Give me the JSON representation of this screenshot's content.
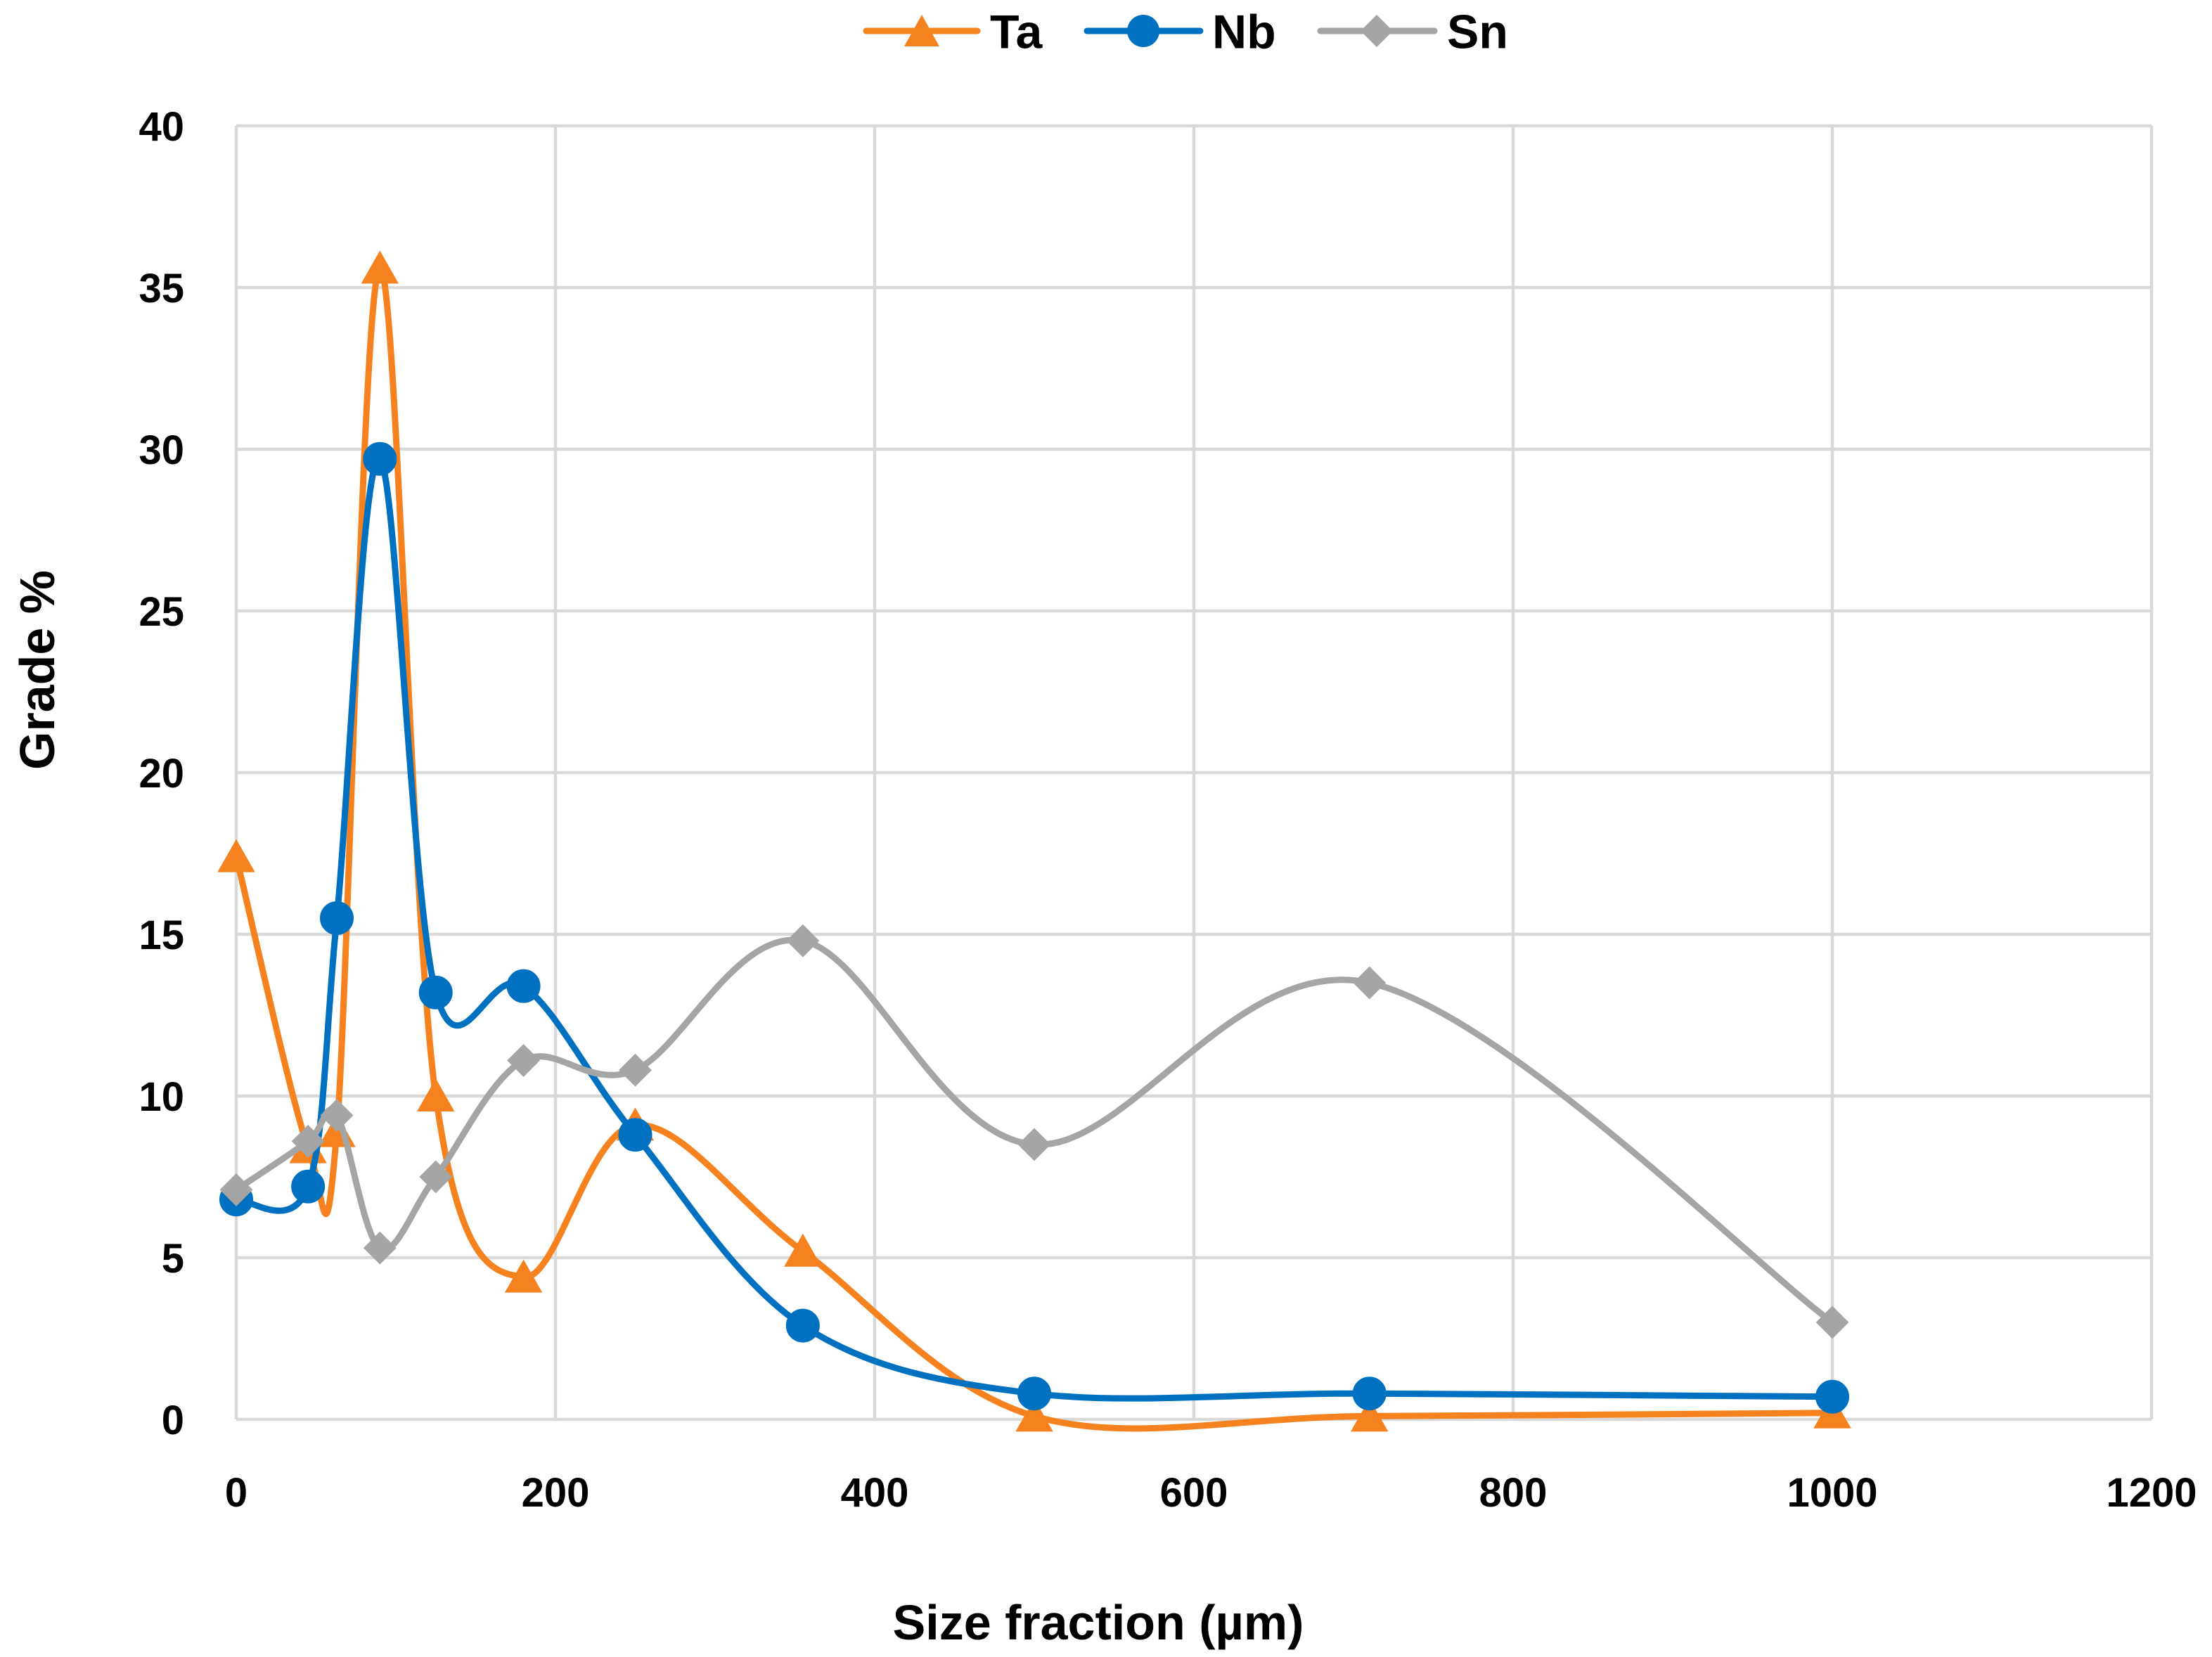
{
  "chart_data": {
    "type": "line",
    "smooth": true,
    "xlabel": "Size fraction (µm)",
    "ylabel": "Grade %",
    "xlim": [
      0,
      1200
    ],
    "ylim": [
      0,
      40
    ],
    "xticks": [
      0,
      200,
      400,
      600,
      800,
      1000,
      1200
    ],
    "yticks": [
      0,
      5,
      10,
      15,
      20,
      25,
      30,
      35,
      40
    ],
    "grid": true,
    "legend": "top-center",
    "x": [
      0,
      45,
      63,
      90,
      125,
      180,
      250,
      355,
      500,
      710,
      1000
    ],
    "series": [
      {
        "name": "Ta",
        "marker": "triangle",
        "color": "#F5821F",
        "values": [
          17.4,
          8.4,
          8.9,
          35.6,
          10.0,
          4.4,
          9.1,
          5.2,
          0.1,
          0.1,
          0.2
        ]
      },
      {
        "name": "Nb",
        "marker": "circle",
        "color": "#0070C0",
        "values": [
          6.8,
          7.2,
          15.5,
          29.7,
          13.2,
          13.4,
          8.8,
          2.9,
          0.8,
          0.8,
          0.7
        ]
      },
      {
        "name": "Sn",
        "marker": "diamond",
        "color": "#A5A5A5",
        "values": [
          7.1,
          8.6,
          9.4,
          5.3,
          7.5,
          11.1,
          10.8,
          14.8,
          8.5,
          13.5,
          3.0
        ]
      }
    ]
  },
  "colors": {
    "grid": "#D9D9D9",
    "text": "#000000"
  }
}
